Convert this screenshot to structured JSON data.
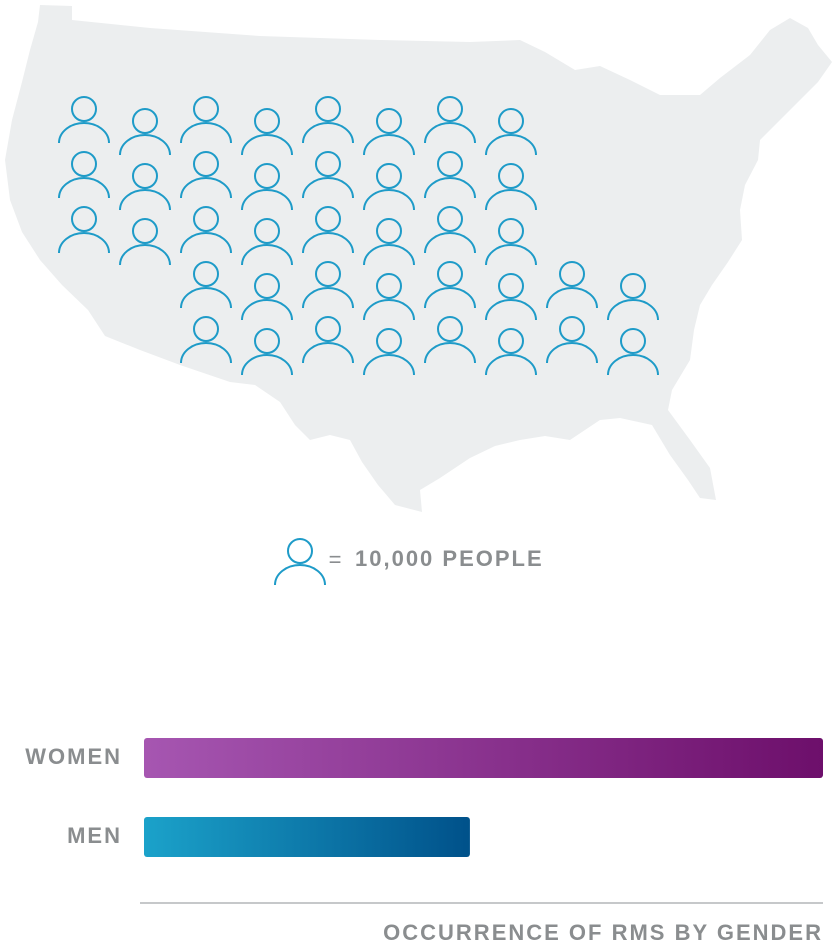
{
  "chart_data": [
    {
      "type": "pictogram",
      "icon_count": 40,
      "icon_color": "#1e9bc8",
      "legend_label": "10,000 PEOPLE"
    },
    {
      "type": "bar",
      "orientation": "horizontal",
      "categories": [
        "WOMEN",
        "MEN"
      ],
      "values": [
        100,
        48
      ],
      "gradients": [
        [
          "#a656b1",
          "#6d0f6b"
        ],
        [
          "#1ba2ca",
          "#00518a"
        ]
      ],
      "xlabel": "OCCURRENCE OF RMS BY GENDER"
    }
  ]
}
